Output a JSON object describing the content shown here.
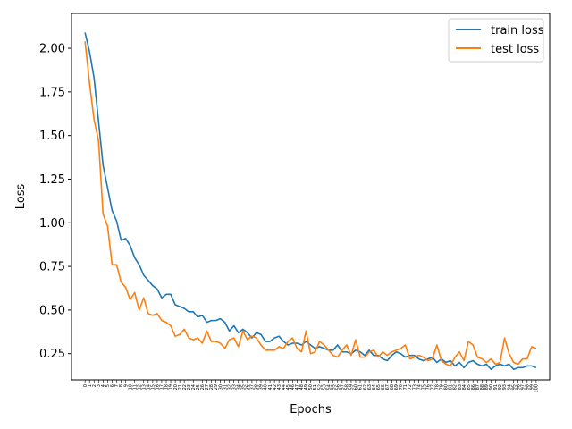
{
  "chart_data": {
    "type": "line",
    "title": "",
    "xlabel": "Epochs",
    "ylabel": "Loss",
    "xlim": [
      -3,
      103
    ],
    "ylim": [
      0.1,
      2.2
    ],
    "yticks": [
      "0.25",
      "0.50",
      "0.75",
      "1.00",
      "1.25",
      "1.50",
      "1.75",
      "2.00"
    ],
    "legend_position": "top-right",
    "grid": false,
    "x": [
      0,
      1,
      2,
      3,
      4,
      5,
      6,
      7,
      8,
      9,
      10,
      11,
      12,
      13,
      14,
      15,
      16,
      17,
      18,
      19,
      20,
      21,
      22,
      23,
      24,
      25,
      26,
      27,
      28,
      29,
      30,
      31,
      32,
      33,
      34,
      35,
      36,
      37,
      38,
      39,
      40,
      41,
      42,
      43,
      44,
      45,
      46,
      47,
      48,
      49,
      50,
      51,
      52,
      53,
      54,
      55,
      56,
      57,
      58,
      59,
      60,
      61,
      62,
      63,
      64,
      65,
      66,
      67,
      68,
      69,
      70,
      71,
      72,
      73,
      74,
      75,
      76,
      77,
      78,
      79,
      80,
      81,
      82,
      83,
      84,
      85,
      86,
      87,
      88,
      89,
      90,
      91,
      92,
      93,
      94,
      95,
      96,
      97,
      98,
      99,
      100
    ],
    "series": [
      {
        "name": "train loss",
        "color": "#1f77b4",
        "values": [
          2.09,
          1.98,
          1.83,
          1.58,
          1.33,
          1.2,
          1.07,
          1.01,
          0.9,
          0.91,
          0.87,
          0.8,
          0.76,
          0.7,
          0.67,
          0.64,
          0.62,
          0.57,
          0.59,
          0.59,
          0.53,
          0.52,
          0.51,
          0.49,
          0.49,
          0.46,
          0.47,
          0.43,
          0.44,
          0.44,
          0.45,
          0.43,
          0.38,
          0.41,
          0.37,
          0.39,
          0.37,
          0.34,
          0.37,
          0.36,
          0.32,
          0.32,
          0.34,
          0.35,
          0.32,
          0.3,
          0.31,
          0.31,
          0.3,
          0.32,
          0.3,
          0.28,
          0.29,
          0.28,
          0.27,
          0.27,
          0.3,
          0.26,
          0.26,
          0.25,
          0.27,
          0.26,
          0.24,
          0.27,
          0.24,
          0.24,
          0.22,
          0.21,
          0.24,
          0.26,
          0.25,
          0.23,
          0.24,
          0.24,
          0.22,
          0.21,
          0.22,
          0.23,
          0.2,
          0.22,
          0.2,
          0.21,
          0.18,
          0.2,
          0.17,
          0.2,
          0.21,
          0.19,
          0.18,
          0.19,
          0.16,
          0.18,
          0.19,
          0.18,
          0.19,
          0.16,
          0.17,
          0.17,
          0.18,
          0.18,
          0.17
        ]
      },
      {
        "name": "test loss",
        "color": "#ff7f0e",
        "values": [
          2.04,
          1.8,
          1.59,
          1.47,
          1.05,
          0.98,
          0.76,
          0.76,
          0.66,
          0.63,
          0.56,
          0.6,
          0.5,
          0.57,
          0.48,
          0.47,
          0.48,
          0.44,
          0.43,
          0.41,
          0.35,
          0.36,
          0.39,
          0.34,
          0.33,
          0.34,
          0.31,
          0.38,
          0.32,
          0.32,
          0.31,
          0.28,
          0.33,
          0.34,
          0.29,
          0.38,
          0.33,
          0.35,
          0.34,
          0.3,
          0.27,
          0.27,
          0.27,
          0.29,
          0.28,
          0.32,
          0.34,
          0.28,
          0.26,
          0.38,
          0.25,
          0.26,
          0.32,
          0.3,
          0.27,
          0.24,
          0.23,
          0.27,
          0.3,
          0.24,
          0.33,
          0.23,
          0.23,
          0.26,
          0.27,
          0.23,
          0.26,
          0.24,
          0.26,
          0.27,
          0.28,
          0.3,
          0.22,
          0.23,
          0.24,
          0.23,
          0.21,
          0.22,
          0.3,
          0.21,
          0.19,
          0.18,
          0.23,
          0.26,
          0.21,
          0.32,
          0.3,
          0.23,
          0.22,
          0.2,
          0.22,
          0.19,
          0.2,
          0.34,
          0.25,
          0.2,
          0.19,
          0.22,
          0.22,
          0.29,
          0.28
        ]
      }
    ]
  }
}
